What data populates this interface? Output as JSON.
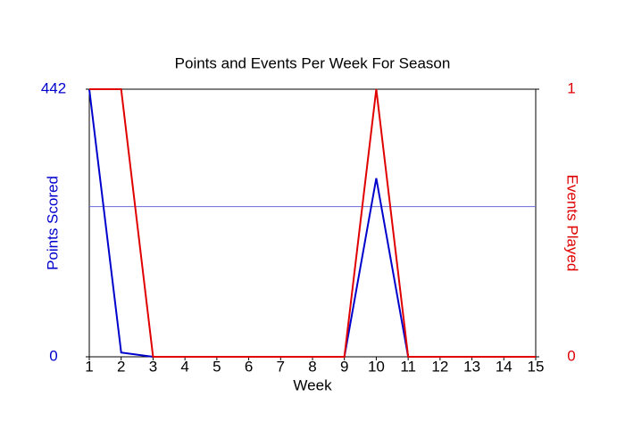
{
  "chart_data": {
    "type": "line",
    "title": "Points and Events Per Week For Season",
    "x_label": "Week",
    "y_label": "Points Scored",
    "y2_label": "Events Played",
    "x": [
      1,
      2,
      3,
      4,
      5,
      6,
      7,
      8,
      9,
      10,
      11,
      12,
      13,
      14,
      15
    ],
    "xlim": [
      1,
      15
    ],
    "xticks": [
      1,
      2,
      3,
      4,
      5,
      6,
      7,
      8,
      9,
      10,
      11,
      12,
      13,
      14,
      15
    ],
    "ylim": [
      0,
      442
    ],
    "yticks": [
      0,
      442
    ],
    "y2lim": [
      0,
      1
    ],
    "y2ticks": [
      0,
      1
    ],
    "y_color": "#0000cc",
    "y2_color": "#e00000",
    "hline": {
      "value": 248,
      "color": "#6a6ad8"
    },
    "series": [
      {
        "name": "Points Scored",
        "color": "#0000cc",
        "values": [
          442,
          7,
          0,
          0,
          0,
          0,
          0,
          0,
          0,
          295,
          0,
          0,
          0,
          0,
          0
        ]
      },
      {
        "name": "Events Played",
        "color": "#e00000",
        "axis": "y2",
        "values": [
          1,
          1,
          0,
          0,
          0,
          0,
          0,
          0,
          0,
          1,
          0,
          0,
          0,
          0,
          0
        ]
      }
    ]
  }
}
